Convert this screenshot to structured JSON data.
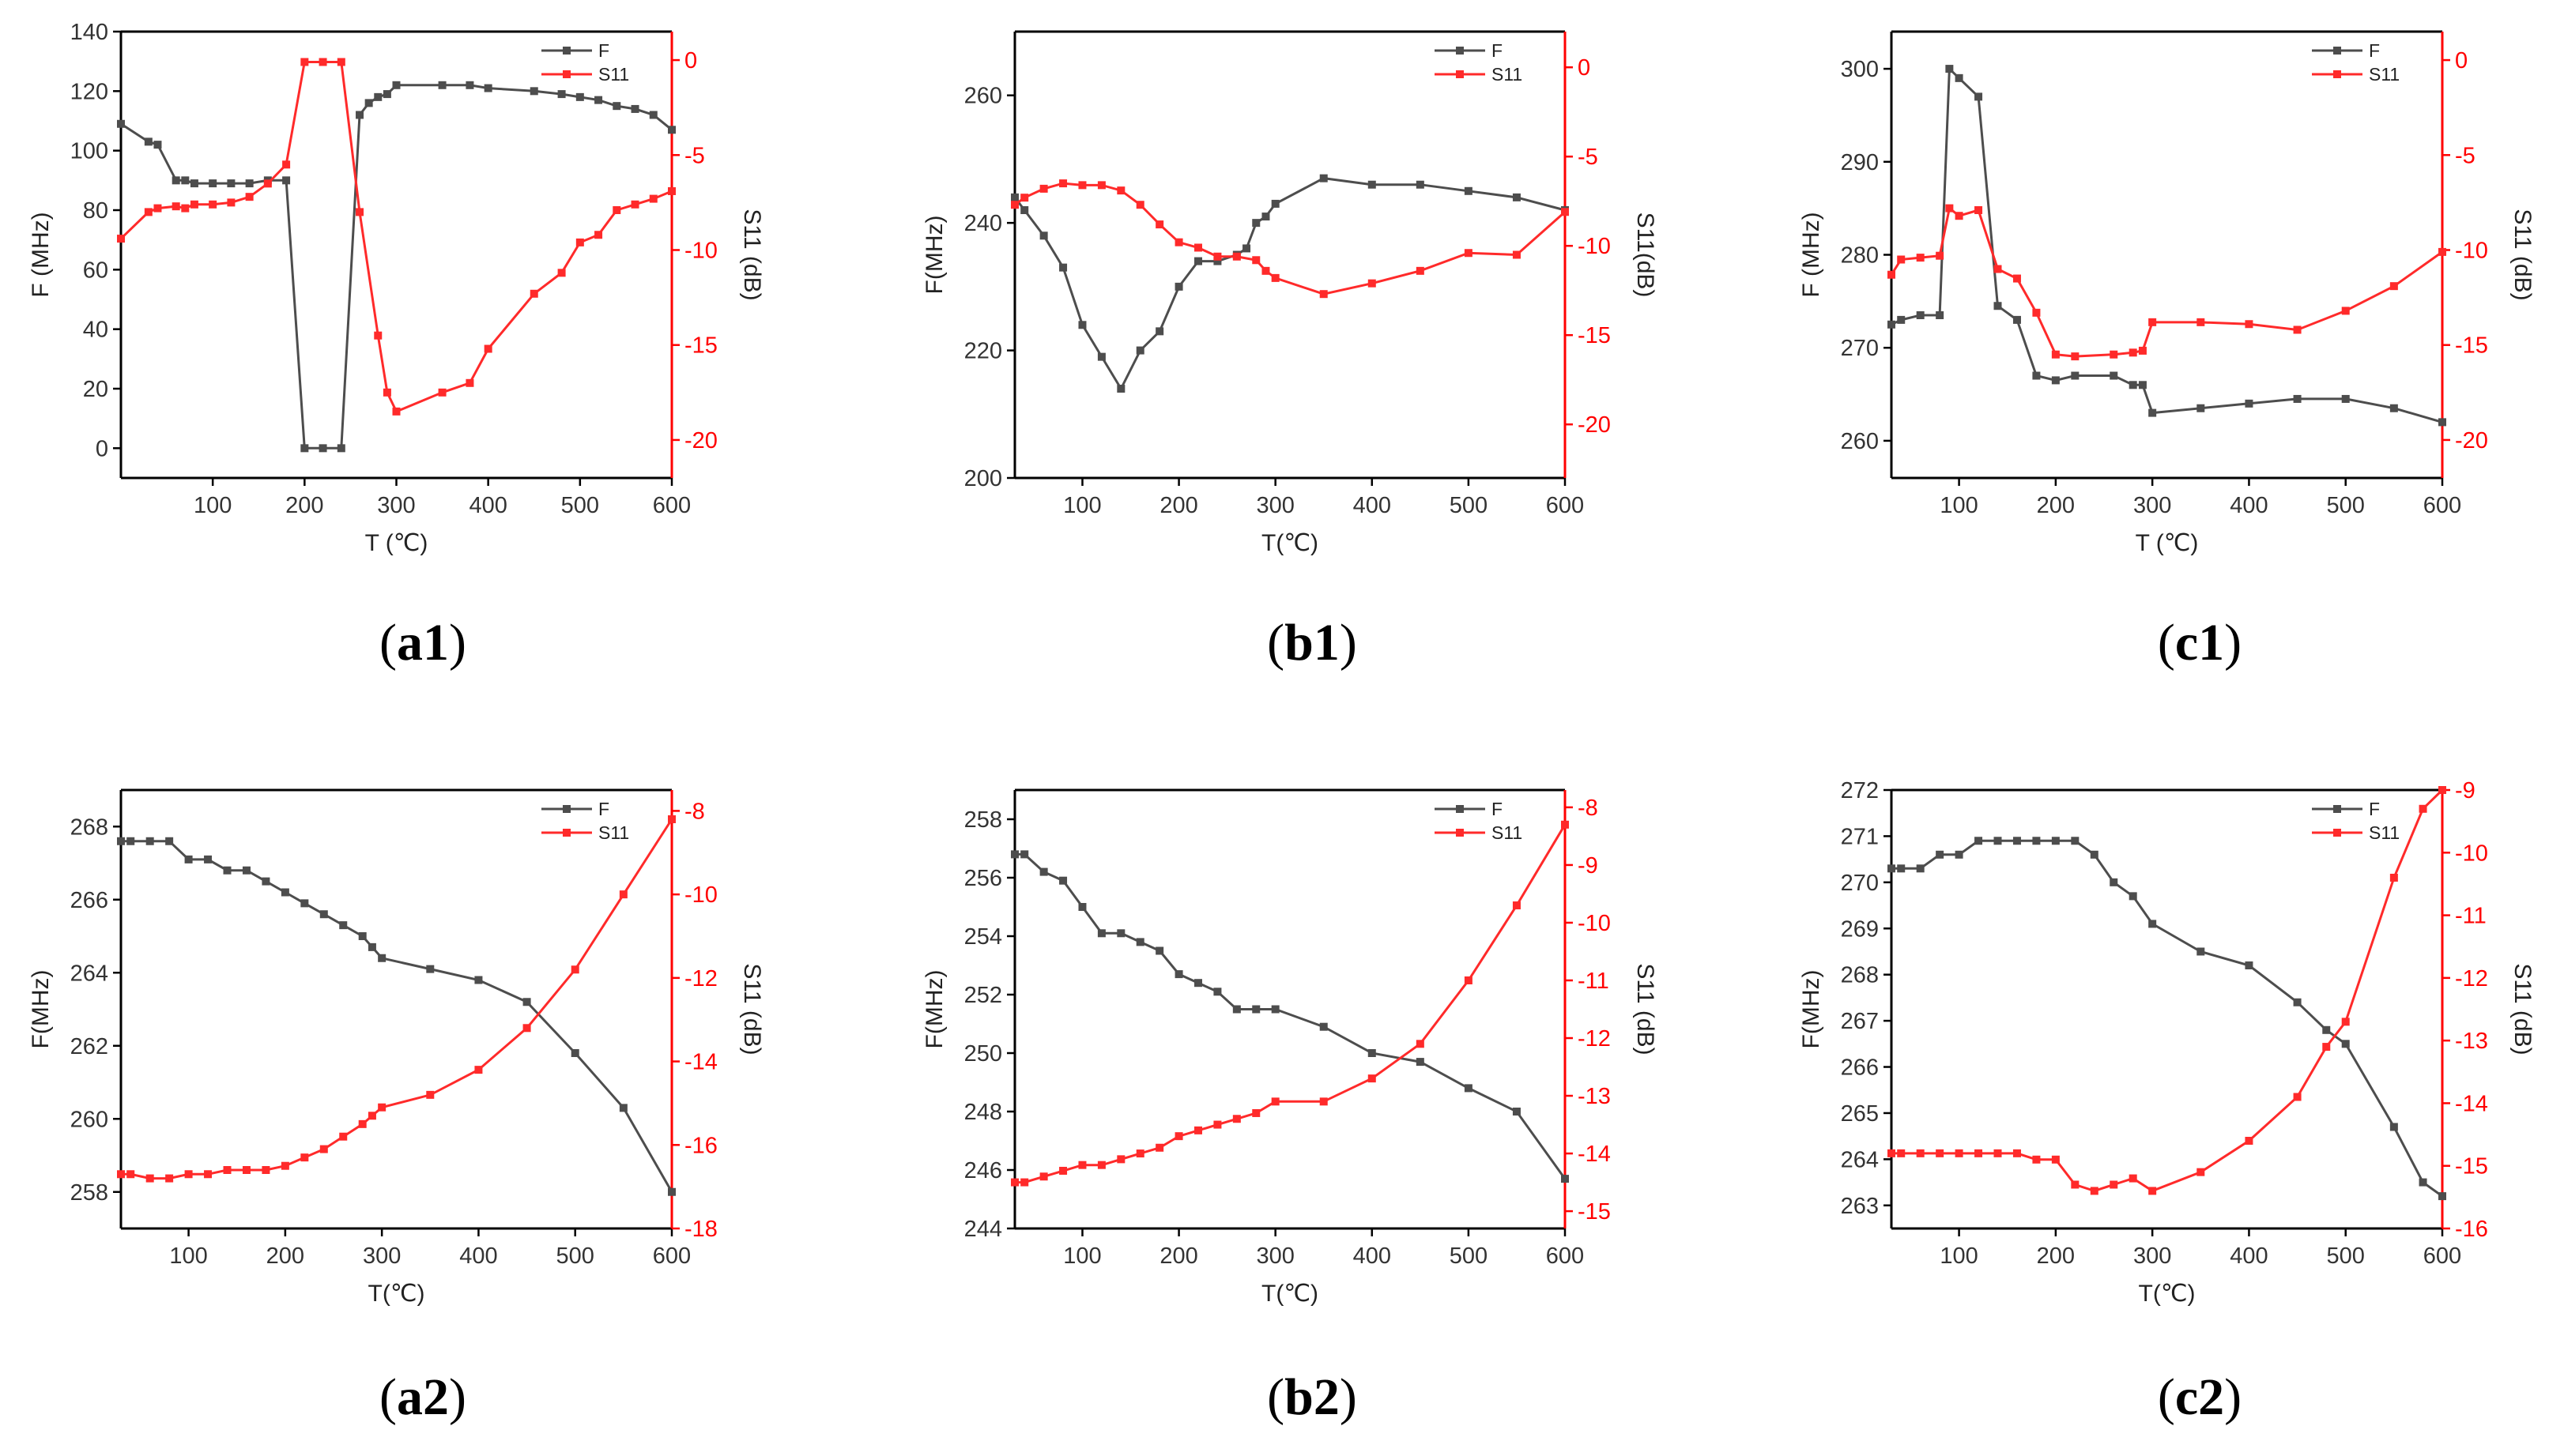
{
  "colors": {
    "F": "#4d4d4d",
    "S11": "#ff2a2a",
    "axis": "#000000",
    "right_axis": "#ff0000"
  },
  "chart_data": [
    {
      "id": "a1",
      "panel_label": "a1",
      "type": "line",
      "xlabel": "T (℃)",
      "ylabel": "F (MHz)",
      "y2label": "S11 (dB)",
      "xlim": [
        0,
        600
      ],
      "xticks": [
        100,
        200,
        300,
        400,
        500,
        600
      ],
      "ylim": [
        -10,
        140
      ],
      "yticks": [
        0,
        20,
        40,
        60,
        80,
        100,
        120,
        140
      ],
      "y2lim": [
        -22,
        1.5
      ],
      "y2ticks": [
        0,
        -5,
        -10,
        -15,
        -20
      ],
      "legend": [
        "F",
        "S11"
      ],
      "series": [
        {
          "name": "F",
          "axis": "left",
          "x": [
            0,
            30,
            40,
            60,
            70,
            80,
            100,
            120,
            140,
            160,
            180,
            200,
            220,
            240,
            260,
            270,
            280,
            290,
            300,
            350,
            380,
            400,
            450,
            480,
            500,
            520,
            540,
            560,
            580,
            600
          ],
          "y": [
            109,
            103,
            102,
            90,
            90,
            89,
            89,
            89,
            89,
            90,
            90,
            0,
            0,
            0,
            112,
            116,
            118,
            119,
            122,
            122,
            122,
            121,
            120,
            119,
            118,
            117,
            115,
            114,
            112,
            107
          ]
        },
        {
          "name": "S11",
          "axis": "right",
          "x": [
            0,
            30,
            40,
            60,
            70,
            80,
            100,
            120,
            140,
            160,
            180,
            200,
            220,
            240,
            260,
            280,
            290,
            300,
            350,
            380,
            400,
            450,
            480,
            500,
            520,
            540,
            560,
            580,
            600
          ],
          "y": [
            -9.4,
            -8.0,
            -7.8,
            -7.7,
            -7.8,
            -7.6,
            -7.6,
            -7.5,
            -7.2,
            -6.5,
            -5.5,
            -0.1,
            -0.1,
            -0.1,
            -8.0,
            -14.5,
            -17.5,
            -18.5,
            -17.5,
            -17.0,
            -15.2,
            -12.3,
            -11.2,
            -9.6,
            -9.2,
            -7.9,
            -7.6,
            -7.3,
            -6.9
          ]
        }
      ]
    },
    {
      "id": "b1",
      "panel_label": "b1",
      "type": "line",
      "xlabel": "T(℃)",
      "ylabel": "F(MHz)",
      "y2label": "S11(dB)",
      "xlim": [
        30,
        600
      ],
      "xticks": [
        100,
        200,
        300,
        400,
        500,
        600
      ],
      "ylim": [
        200,
        270
      ],
      "yticks": [
        200,
        220,
        240,
        260
      ],
      "y2lim": [
        -23,
        2
      ],
      "y2ticks": [
        0,
        -5,
        -10,
        -15,
        -20
      ],
      "legend": [
        "F",
        "S11"
      ],
      "series": [
        {
          "name": "F",
          "axis": "left",
          "x": [
            30,
            40,
            60,
            80,
            100,
            120,
            140,
            160,
            180,
            200,
            220,
            240,
            260,
            270,
            280,
            290,
            300,
            350,
            400,
            450,
            500,
            550,
            600
          ],
          "y": [
            244,
            242,
            238,
            233,
            224,
            219,
            214,
            220,
            223,
            230,
            234,
            234,
            235,
            236,
            240,
            241,
            243,
            247,
            246,
            246,
            245,
            244,
            242
          ]
        },
        {
          "name": "S11",
          "axis": "right",
          "x": [
            30,
            40,
            60,
            80,
            100,
            120,
            140,
            160,
            180,
            200,
            220,
            240,
            260,
            280,
            290,
            300,
            350,
            400,
            450,
            500,
            550,
            600
          ],
          "y": [
            -7.7,
            -7.3,
            -6.8,
            -6.5,
            -6.6,
            -6.6,
            -6.9,
            -7.7,
            -8.8,
            -9.8,
            -10.1,
            -10.6,
            -10.6,
            -10.8,
            -11.4,
            -11.8,
            -12.7,
            -12.1,
            -11.4,
            -10.4,
            -10.5,
            -8.1
          ]
        }
      ]
    },
    {
      "id": "c1",
      "panel_label": "c1",
      "type": "line",
      "xlabel": "T (℃)",
      "ylabel": "F (MHz)",
      "y2label": "S11 (dB)",
      "xlim": [
        30,
        600
      ],
      "xticks": [
        100,
        200,
        300,
        400,
        500,
        600
      ],
      "ylim": [
        256,
        304
      ],
      "yticks": [
        260,
        270,
        280,
        290,
        300
      ],
      "y2lim": [
        -22,
        1.5
      ],
      "y2ticks": [
        0,
        -5,
        -10,
        -15,
        -20
      ],
      "legend": [
        "F",
        "S11"
      ],
      "series": [
        {
          "name": "F",
          "axis": "left",
          "x": [
            30,
            40,
            60,
            80,
            90,
            100,
            120,
            140,
            160,
            180,
            200,
            220,
            260,
            280,
            290,
            300,
            350,
            400,
            450,
            500,
            550,
            600
          ],
          "y": [
            272.5,
            273,
            273.5,
            273.5,
            300,
            299,
            297,
            274.5,
            273,
            267,
            266.5,
            267,
            267,
            266,
            266,
            263,
            263.5,
            264,
            264.5,
            264.5,
            263.5,
            262
          ]
        },
        {
          "name": "S11",
          "axis": "right",
          "x": [
            30,
            40,
            60,
            80,
            90,
            100,
            120,
            140,
            160,
            180,
            200,
            220,
            260,
            280,
            290,
            300,
            350,
            400,
            450,
            500,
            550,
            600
          ],
          "y": [
            -11.3,
            -10.5,
            -10.4,
            -10.3,
            -7.8,
            -8.2,
            -7.9,
            -11.0,
            -11.5,
            -13.3,
            -15.5,
            -15.6,
            -15.5,
            -15.4,
            -15.3,
            -13.8,
            -13.8,
            -13.9,
            -14.2,
            -13.2,
            -11.9,
            -10.1
          ]
        }
      ]
    },
    {
      "id": "a2",
      "panel_label": "a2",
      "type": "line",
      "xlabel": "T(℃)",
      "ylabel": "F(MHz)",
      "y2label": "S11 (dB)",
      "xlim": [
        30,
        600
      ],
      "xticks": [
        100,
        200,
        300,
        400,
        500,
        600
      ],
      "ylim": [
        257,
        269
      ],
      "yticks": [
        258,
        260,
        262,
        264,
        266,
        268
      ],
      "y2lim": [
        -18,
        -7.5
      ],
      "y2ticks": [
        -8,
        -10,
        -12,
        -14,
        -16,
        -18
      ],
      "legend": [
        "F",
        "S11"
      ],
      "series": [
        {
          "name": "F",
          "axis": "left",
          "x": [
            30,
            40,
            60,
            80,
            100,
            120,
            140,
            160,
            180,
            200,
            220,
            240,
            260,
            280,
            290,
            300,
            350,
            400,
            450,
            500,
            550,
            600
          ],
          "y": [
            267.6,
            267.6,
            267.6,
            267.6,
            267.1,
            267.1,
            266.8,
            266.8,
            266.5,
            266.2,
            265.9,
            265.6,
            265.3,
            265.0,
            264.7,
            264.4,
            264.1,
            263.8,
            263.2,
            261.8,
            260.3,
            258.0
          ]
        },
        {
          "name": "S11",
          "axis": "right",
          "x": [
            30,
            40,
            60,
            80,
            100,
            120,
            140,
            160,
            180,
            200,
            220,
            240,
            260,
            280,
            290,
            300,
            350,
            400,
            450,
            500,
            550,
            600
          ],
          "y": [
            -16.7,
            -16.7,
            -16.8,
            -16.8,
            -16.7,
            -16.7,
            -16.6,
            -16.6,
            -16.6,
            -16.5,
            -16.3,
            -16.1,
            -15.8,
            -15.5,
            -15.3,
            -15.1,
            -14.8,
            -14.2,
            -13.2,
            -11.8,
            -10.0,
            -8.2
          ]
        }
      ]
    },
    {
      "id": "b2",
      "panel_label": "b2",
      "type": "line",
      "xlabel": "T(℃)",
      "ylabel": "F(MHz)",
      "y2label": "S11 (dB)",
      "xlim": [
        30,
        600
      ],
      "xticks": [
        100,
        200,
        300,
        400,
        500,
        600
      ],
      "ylim": [
        244,
        259
      ],
      "yticks": [
        244,
        246,
        248,
        250,
        252,
        254,
        256,
        258
      ],
      "y2lim": [
        -15.3,
        -7.7
      ],
      "y2ticks": [
        -8,
        -9,
        -10,
        -11,
        -12,
        -13,
        -14,
        -15
      ],
      "legend": [
        "F",
        "S11"
      ],
      "series": [
        {
          "name": "F",
          "axis": "left",
          "x": [
            30,
            40,
            60,
            80,
            100,
            120,
            140,
            160,
            180,
            200,
            220,
            240,
            260,
            280,
            300,
            350,
            400,
            450,
            500,
            550,
            600
          ],
          "y": [
            256.8,
            256.8,
            256.2,
            255.9,
            255.0,
            254.1,
            254.1,
            253.8,
            253.5,
            252.7,
            252.4,
            252.1,
            251.5,
            251.5,
            251.5,
            250.9,
            250.0,
            249.7,
            248.8,
            248.0,
            245.7
          ]
        },
        {
          "name": "S11",
          "axis": "right",
          "x": [
            30,
            40,
            60,
            80,
            100,
            120,
            140,
            160,
            180,
            200,
            220,
            240,
            260,
            280,
            300,
            350,
            400,
            450,
            500,
            550,
            600
          ],
          "y": [
            -14.5,
            -14.5,
            -14.4,
            -14.3,
            -14.2,
            -14.2,
            -14.1,
            -14.0,
            -13.9,
            -13.7,
            -13.6,
            -13.5,
            -13.4,
            -13.3,
            -13.1,
            -13.1,
            -12.7,
            -12.1,
            -11.0,
            -9.7,
            -8.3
          ]
        }
      ]
    },
    {
      "id": "c2",
      "panel_label": "c2",
      "type": "line",
      "xlabel": "T(℃)",
      "ylabel": "F(MHz)",
      "y2label": "S11 (dB)",
      "xlim": [
        30,
        600
      ],
      "xticks": [
        100,
        200,
        300,
        400,
        500,
        600
      ],
      "ylim": [
        262.5,
        272
      ],
      "yticks": [
        263,
        264,
        265,
        266,
        267,
        268,
        269,
        270,
        271,
        272
      ],
      "y2lim": [
        -16,
        -9
      ],
      "y2ticks": [
        -9,
        -10,
        -11,
        -12,
        -13,
        -14,
        -15,
        -16
      ],
      "legend": [
        "F",
        "S11"
      ],
      "series": [
        {
          "name": "F",
          "axis": "left",
          "x": [
            30,
            40,
            60,
            80,
            100,
            120,
            140,
            160,
            180,
            200,
            220,
            240,
            260,
            280,
            300,
            350,
            400,
            450,
            480,
            500,
            550,
            580,
            600
          ],
          "y": [
            270.3,
            270.3,
            270.3,
            270.6,
            270.6,
            270.9,
            270.9,
            270.9,
            270.9,
            270.9,
            270.9,
            270.6,
            270.0,
            269.7,
            269.1,
            268.5,
            268.2,
            267.4,
            266.8,
            266.5,
            264.7,
            263.5,
            263.2
          ]
        },
        {
          "name": "S11",
          "axis": "right",
          "x": [
            30,
            40,
            60,
            80,
            100,
            120,
            140,
            160,
            180,
            200,
            220,
            240,
            260,
            280,
            300,
            350,
            400,
            450,
            480,
            500,
            550,
            580,
            600
          ],
          "y": [
            -14.8,
            -14.8,
            -14.8,
            -14.8,
            -14.8,
            -14.8,
            -14.8,
            -14.8,
            -14.9,
            -14.9,
            -15.3,
            -15.4,
            -15.3,
            -15.2,
            -15.4,
            -15.1,
            -14.6,
            -13.9,
            -13.1,
            -12.7,
            -10.4,
            -9.3,
            -9.0
          ]
        }
      ]
    }
  ]
}
